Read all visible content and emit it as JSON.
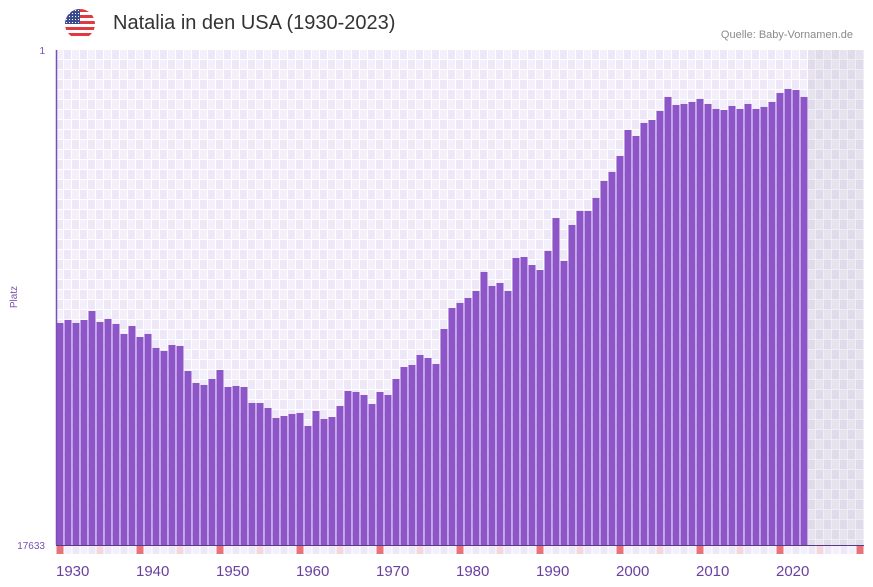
{
  "header": {
    "title": "Natalia in den USA (1930-2023)",
    "source": "Quelle: Baby-Vornamen.de",
    "flag_icon": "us-flag-icon"
  },
  "chart_data": {
    "type": "bar",
    "title": "Natalia in den USA (1930-2023)",
    "xlabel": "",
    "ylabel": "Platz",
    "y_inverted": true,
    "ylim": [
      1,
      17633
    ],
    "y_tick_labels": [
      "1",
      "17633"
    ],
    "xlim": [
      1930,
      2030
    ],
    "x_tick_labels": [
      "1930",
      "1940",
      "1950",
      "1960",
      "1970",
      "1980",
      "1990",
      "2000",
      "2010",
      "2020"
    ],
    "x_ticks": [
      1930,
      1940,
      1950,
      1960,
      1970,
      1980,
      1990,
      2000,
      2010,
      2020
    ],
    "grid": true,
    "colors": {
      "bar": "#8e55c8",
      "axis": "#7a4fb0",
      "decade_marker": "#e8737a",
      "halfdecade_marker": "#f5d5de",
      "future_zone": "#e4e0ec"
    },
    "categories": [
      1930,
      1931,
      1932,
      1933,
      1934,
      1935,
      1936,
      1937,
      1938,
      1939,
      1940,
      1941,
      1942,
      1943,
      1944,
      1945,
      1946,
      1947,
      1948,
      1949,
      1950,
      1951,
      1952,
      1953,
      1954,
      1955,
      1956,
      1957,
      1958,
      1959,
      1960,
      1961,
      1962,
      1963,
      1964,
      1965,
      1966,
      1967,
      1968,
      1969,
      1970,
      1971,
      1972,
      1973,
      1974,
      1975,
      1976,
      1977,
      1978,
      1979,
      1980,
      1981,
      1982,
      1983,
      1984,
      1985,
      1986,
      1987,
      1988,
      1989,
      1990,
      1991,
      1992,
      1993,
      1994,
      1995,
      1996,
      1997,
      1998,
      1999,
      2000,
      2001,
      2002,
      2003,
      2004,
      2005,
      2006,
      2007,
      2008,
      2009,
      2010,
      2011,
      2012,
      2013,
      2014,
      2015,
      2016,
      2017,
      2018,
      2019,
      2020,
      2021,
      2022,
      2023
    ],
    "values": [
      9725,
      9618,
      9725,
      9618,
      9297,
      9689,
      9582,
      9760,
      10117,
      9832,
      10224,
      10117,
      10615,
      10722,
      10509,
      10544,
      11435,
      11862,
      11933,
      11720,
      11399,
      12005,
      11969,
      12005,
      12575,
      12575,
      12753,
      13109,
      13038,
      12967,
      12931,
      13394,
      12860,
      13145,
      13074,
      12682,
      12147,
      12183,
      12290,
      12611,
      12183,
      12290,
      11720,
      11293,
      11221,
      10865,
      10972,
      11186,
      9939,
      9191,
      9012,
      8834,
      8585,
      7908,
      8407,
      8300,
      8585,
      7410,
      7374,
      7659,
      7837,
      7160,
      5985,
      7516,
      6234,
      5735,
      5735,
      5272,
      4667,
      4346,
      3776,
      2850,
      3064,
      2600,
      2494,
      2173,
      1674,
      1959,
      1924,
      1852,
      1745,
      1924,
      2102,
      2137,
      1995,
      2102,
      1924,
      2102,
      2030,
      1852,
      1532,
      1389,
      1425,
      1674
    ]
  }
}
